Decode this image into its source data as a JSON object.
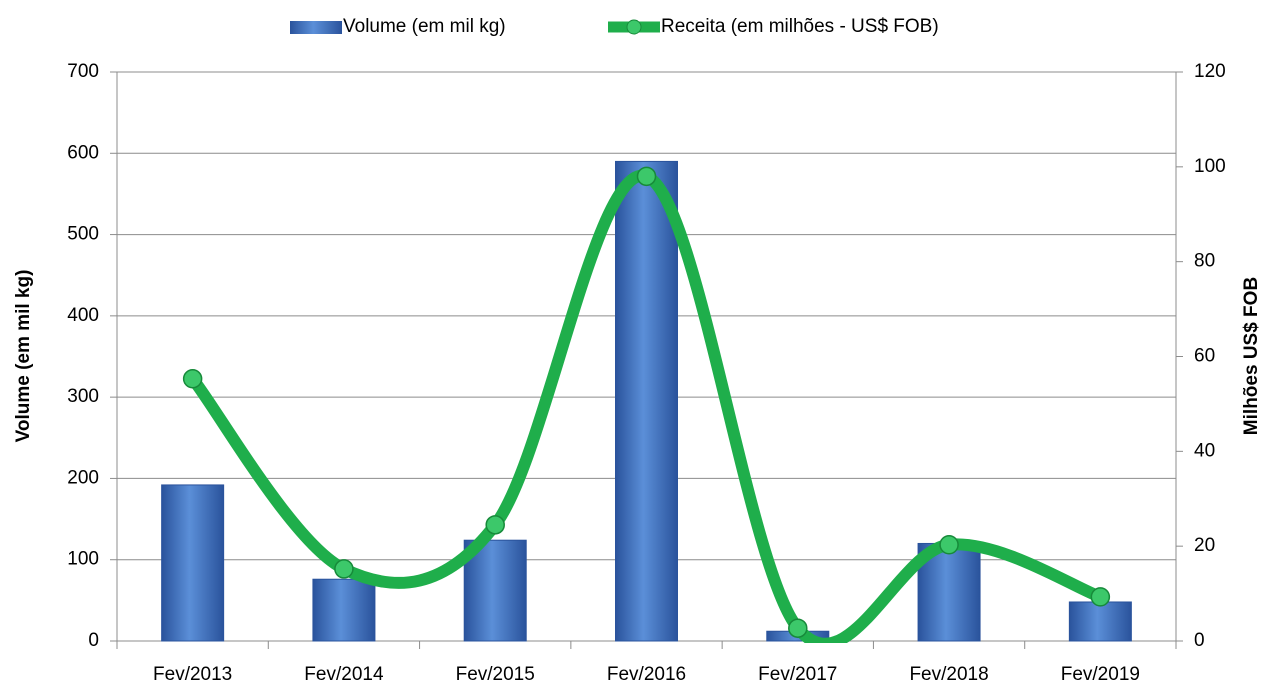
{
  "chart_data": {
    "type": "bar_line",
    "categories": [
      "Fev/2013",
      "Fev/2014",
      "Fev/2015",
      "Fev/2016",
      "Fev/2017",
      "Fev/2018",
      "Fev/2019"
    ],
    "series": [
      {
        "name": "Volume (em mil kg)",
        "color": "#3f6fc0",
        "type": "bar",
        "values": [
          192,
          76,
          124,
          590,
          12,
          120,
          48
        ]
      },
      {
        "name": "Receita (em milhões - US$ FOB)",
        "color": "#1fae4b",
        "type": "line",
        "axis": "y2",
        "values": [
          55.3,
          15.2,
          24.5,
          98,
          2.7,
          20.3,
          9.3
        ]
      }
    ],
    "ylabel": "Volume (em mil kg)",
    "y2label": "Milhões US$ FOB",
    "ylim": [
      0,
      700
    ],
    "yticks": [
      0,
      100,
      200,
      300,
      400,
      500,
      600,
      700
    ],
    "y2lim": [
      0,
      120
    ],
    "y2ticks": [
      0,
      20,
      40,
      60,
      80,
      100,
      120
    ],
    "grid": true,
    "legend": "top"
  }
}
